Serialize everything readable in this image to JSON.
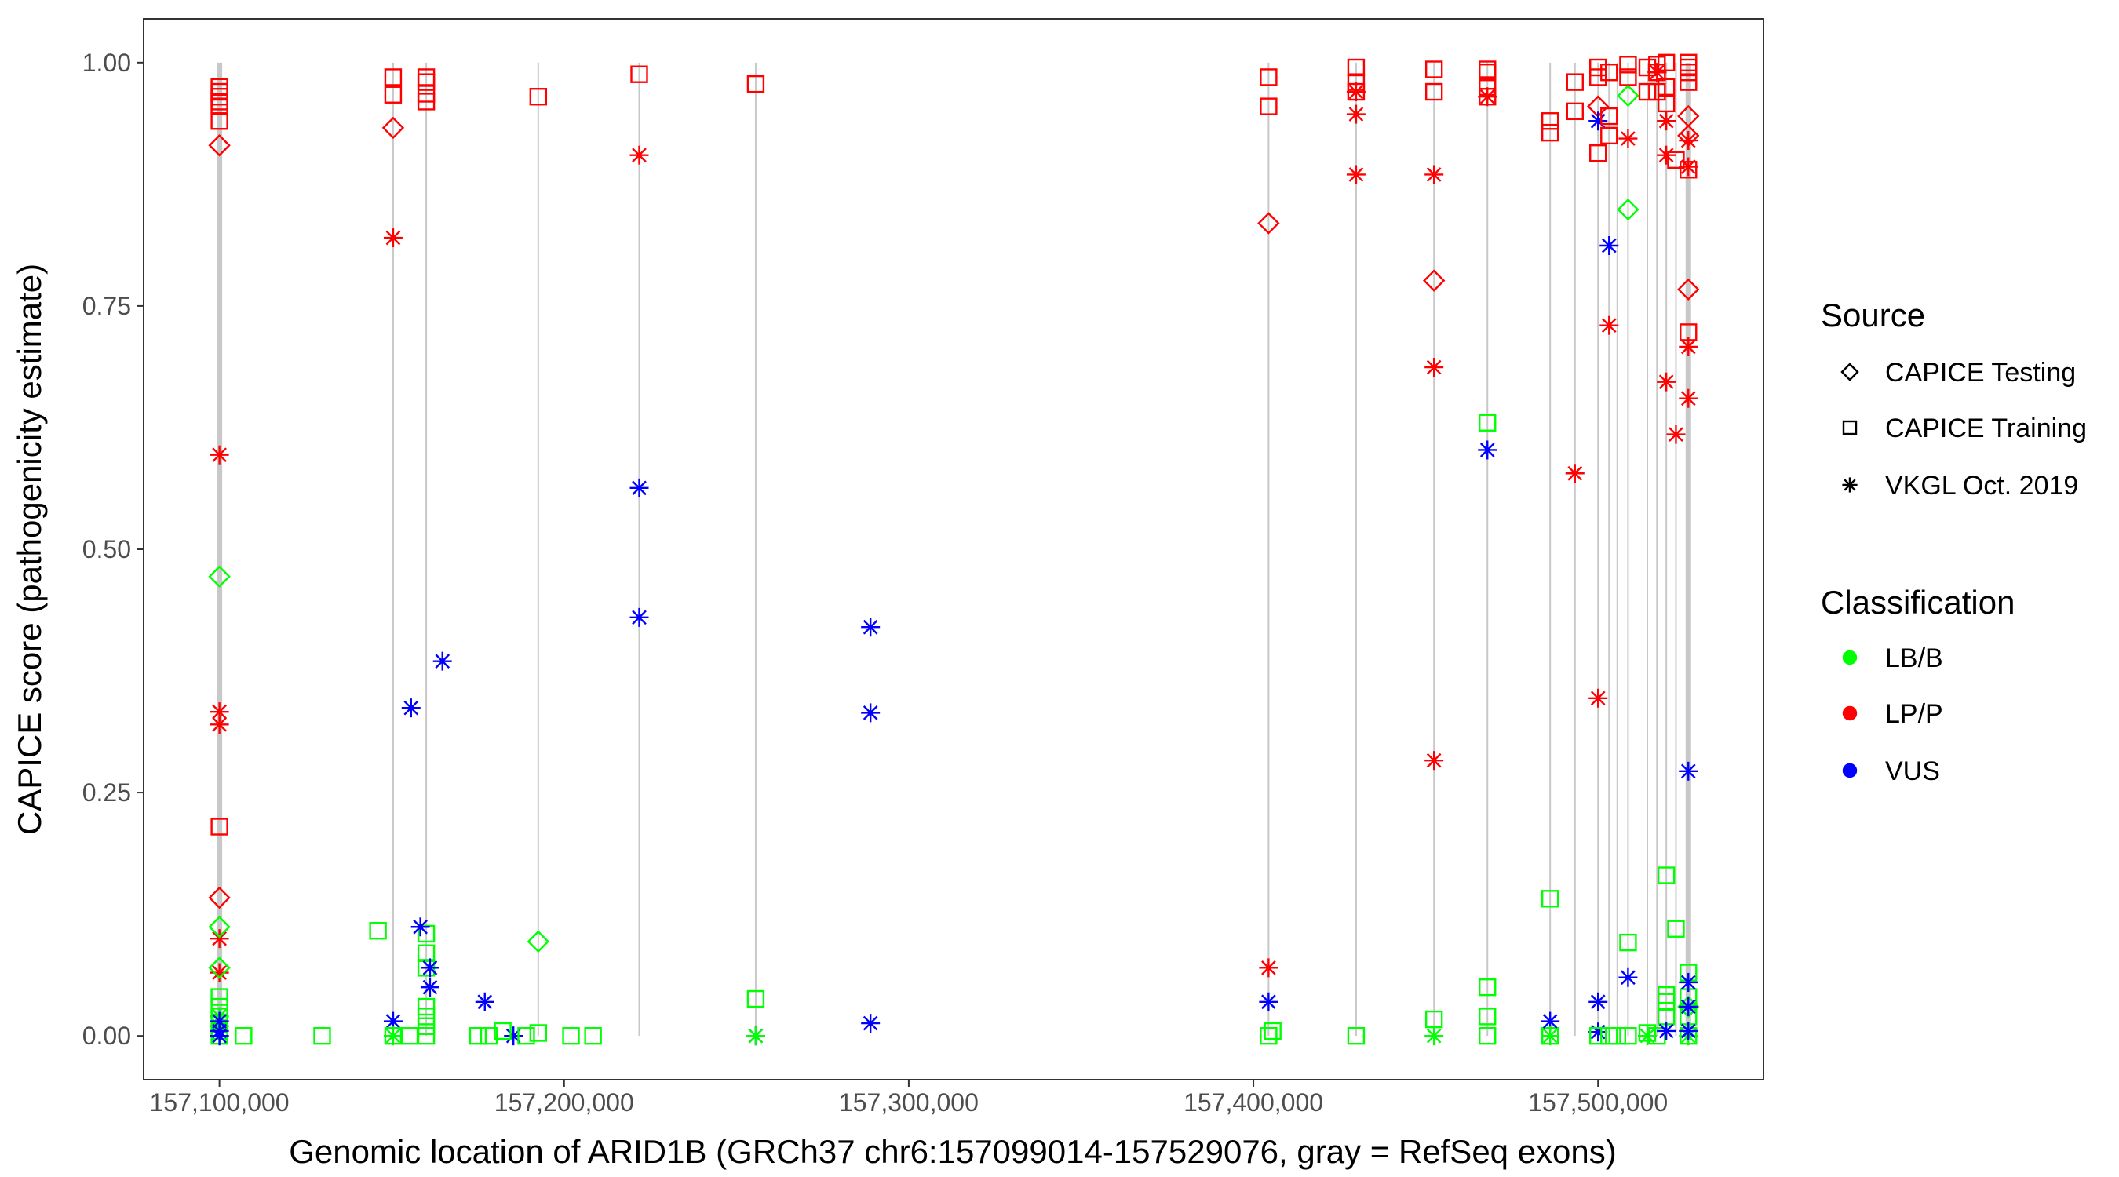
{
  "chart_data": {
    "type": "scatter",
    "xlabel": "Genomic location of ARID1B (GRCh37 chr6:157099014-157529076, gray = RefSeq exons)",
    "ylabel": "CAPICE score (pathogenicity estimate)",
    "xlim": [
      157078000,
      157548000
    ],
    "ylim": [
      -0.045,
      1.045
    ],
    "x_ticks": [
      157100000,
      157200000,
      157300000,
      157400000,
      157500000
    ],
    "x_tick_labels": [
      "157,100,000",
      "157,200,000",
      "157,300,000",
      "157,400,000",
      "157,500,000"
    ],
    "y_ticks": [
      0,
      0.25,
      0.5,
      0.75,
      1.0
    ],
    "y_tick_labels": [
      "0.00",
      "0.25",
      "0.50",
      "0.75",
      "1.00"
    ],
    "grid": false,
    "legend_placement": "right",
    "legends": [
      {
        "title": "Source",
        "items": [
          {
            "key": "T",
            "label": "CAPICE Testing",
            "shape": "diamond"
          },
          {
            "key": "R",
            "label": "CAPICE Training",
            "shape": "square"
          },
          {
            "key": "V",
            "label": "VKGL Oct. 2019",
            "shape": "asterisk"
          }
        ]
      },
      {
        "title": "Classification",
        "items": [
          {
            "key": "B",
            "label": "LB/B",
            "color": "#00ff00"
          },
          {
            "key": "P",
            "label": "LP/P",
            "color": "#ff0000"
          },
          {
            "key": "U",
            "label": "VUS",
            "color": "#0000ff"
          }
        ]
      }
    ],
    "exon_positions": [
      157100000,
      157150400,
      157160000,
      157192500,
      157221800,
      157255600,
      157404400,
      157429800,
      157452400,
      157467900,
      157486100,
      157493300,
      157500000,
      157503200,
      157505600,
      157508700,
      157514300,
      157517100,
      157519800,
      157522600,
      157526200
    ],
    "thick_exons": [
      157100000,
      157526200
    ],
    "point_fields": [
      "position",
      "score",
      "source",
      "classification"
    ],
    "points": [
      [
        157100000,
        0.975,
        "R",
        "P"
      ],
      [
        157100000,
        0.97,
        "R",
        "P"
      ],
      [
        157100000,
        0.965,
        "R",
        "P"
      ],
      [
        157100000,
        0.96,
        "R",
        "P"
      ],
      [
        157100000,
        0.955,
        "R",
        "P"
      ],
      [
        157100000,
        0.94,
        "R",
        "P"
      ],
      [
        157100000,
        0.215,
        "R",
        "P"
      ],
      [
        157100000,
        0.915,
        "T",
        "P"
      ],
      [
        157100000,
        0.142,
        "T",
        "P"
      ],
      [
        157100000,
        0.597,
        "V",
        "P"
      ],
      [
        157100000,
        0.333,
        "V",
        "P"
      ],
      [
        157100000,
        0.32,
        "V",
        "P"
      ],
      [
        157100000,
        0.1,
        "V",
        "P"
      ],
      [
        157100000,
        0.065,
        "V",
        "P"
      ],
      [
        157100000,
        0.472,
        "T",
        "B"
      ],
      [
        157100000,
        0.112,
        "T",
        "B"
      ],
      [
        157100000,
        0.07,
        "T",
        "B"
      ],
      [
        157100000,
        0.04,
        "R",
        "B"
      ],
      [
        157100000,
        0.03,
        "R",
        "B"
      ],
      [
        157100000,
        0.02,
        "R",
        "B"
      ],
      [
        157100000,
        0.005,
        "R",
        "B"
      ],
      [
        157100000,
        0,
        "R",
        "B"
      ],
      [
        157100000,
        0.02,
        "V",
        "B"
      ],
      [
        157100000,
        0.01,
        "V",
        "B"
      ],
      [
        157100000,
        0,
        "V",
        "B"
      ],
      [
        157100000,
        0.015,
        "V",
        "U"
      ],
      [
        157100000,
        0.005,
        "V",
        "U"
      ],
      [
        157100000,
        0,
        "V",
        "U"
      ],
      [
        157150400,
        0.985,
        "R",
        "P"
      ],
      [
        157150400,
        0.967,
        "R",
        "P"
      ],
      [
        157150400,
        0.933,
        "T",
        "P"
      ],
      [
        157150400,
        0.82,
        "V",
        "P"
      ],
      [
        157150400,
        0.015,
        "V",
        "U"
      ],
      [
        157150400,
        0,
        "R",
        "B"
      ],
      [
        157150400,
        0,
        "V",
        "B"
      ],
      [
        157160000,
        0.985,
        "R",
        "P"
      ],
      [
        157160000,
        0.98,
        "R",
        "P"
      ],
      [
        157160000,
        0.968,
        "R",
        "P"
      ],
      [
        157160000,
        0.96,
        "R",
        "P"
      ],
      [
        157160000,
        0.105,
        "R",
        "B"
      ],
      [
        157160000,
        0.085,
        "R",
        "B"
      ],
      [
        157160000,
        0.07,
        "R",
        "B"
      ],
      [
        157160000,
        0.03,
        "R",
        "B"
      ],
      [
        157160000,
        0.02,
        "R",
        "B"
      ],
      [
        157160000,
        0.01,
        "R",
        "B"
      ],
      [
        157160000,
        0,
        "R",
        "B"
      ],
      [
        157158300,
        0.112,
        "V",
        "U"
      ],
      [
        157161100,
        0.07,
        "V",
        "U"
      ],
      [
        157161100,
        0.05,
        "V",
        "U"
      ],
      [
        157155600,
        0.337,
        "V",
        "U"
      ],
      [
        157164700,
        0.385,
        "V",
        "U"
      ],
      [
        157177000,
        0.035,
        "V",
        "U"
      ],
      [
        157185300,
        0,
        "V",
        "U"
      ],
      [
        157146000,
        0.108,
        "R",
        "B"
      ],
      [
        157129800,
        0,
        "R",
        "B"
      ],
      [
        157155200,
        0,
        "R",
        "B"
      ],
      [
        157175000,
        0,
        "R",
        "B"
      ],
      [
        157178200,
        0,
        "R",
        "B"
      ],
      [
        157182200,
        0.005,
        "R",
        "B"
      ],
      [
        157189000,
        0,
        "R",
        "B"
      ],
      [
        157192500,
        0.003,
        "R",
        "B"
      ],
      [
        157202000,
        0,
        "R",
        "B"
      ],
      [
        157208400,
        0,
        "R",
        "B"
      ],
      [
        157107000,
        0,
        "R",
        "B"
      ],
      [
        157192500,
        0.097,
        "T",
        "B"
      ],
      [
        157192500,
        0.965,
        "R",
        "P"
      ],
      [
        157221800,
        0.988,
        "R",
        "P"
      ],
      [
        157221800,
        0.905,
        "V",
        "P"
      ],
      [
        157221800,
        0.563,
        "V",
        "U"
      ],
      [
        157221800,
        0.43,
        "V",
        "U"
      ],
      [
        157255600,
        0.978,
        "R",
        "P"
      ],
      [
        157255600,
        0.038,
        "R",
        "B"
      ],
      [
        157255600,
        0,
        "V",
        "U"
      ],
      [
        157255600,
        0,
        "V",
        "B"
      ],
      [
        157288900,
        0.42,
        "V",
        "U"
      ],
      [
        157288900,
        0.332,
        "V",
        "U"
      ],
      [
        157288900,
        0.013,
        "V",
        "U"
      ],
      [
        157404400,
        0.985,
        "R",
        "P"
      ],
      [
        157404400,
        0.955,
        "R",
        "P"
      ],
      [
        157404400,
        0.835,
        "T",
        "P"
      ],
      [
        157404400,
        0.07,
        "V",
        "P"
      ],
      [
        157404400,
        0.035,
        "V",
        "U"
      ],
      [
        157405600,
        0.005,
        "R",
        "B"
      ],
      [
        157404400,
        0,
        "R",
        "B"
      ],
      [
        157429800,
        0.995,
        "R",
        "P"
      ],
      [
        157429800,
        0.98,
        "R",
        "P"
      ],
      [
        157429800,
        0.97,
        "R",
        "P"
      ],
      [
        157429800,
        0.97,
        "V",
        "P"
      ],
      [
        157429800,
        0.947,
        "V",
        "P"
      ],
      [
        157429800,
        0.885,
        "V",
        "P"
      ],
      [
        157429800,
        0,
        "R",
        "B"
      ],
      [
        157452400,
        0.993,
        "R",
        "P"
      ],
      [
        157452400,
        0.97,
        "R",
        "P"
      ],
      [
        157452400,
        0.776,
        "T",
        "P"
      ],
      [
        157452400,
        0.885,
        "V",
        "P"
      ],
      [
        157452400,
        0.687,
        "V",
        "P"
      ],
      [
        157452400,
        0.283,
        "V",
        "P"
      ],
      [
        157452400,
        0.017,
        "R",
        "B"
      ],
      [
        157452400,
        0,
        "V",
        "B"
      ],
      [
        157467900,
        0.993,
        "R",
        "P"
      ],
      [
        157467900,
        0.99,
        "R",
        "P"
      ],
      [
        157467900,
        0.975,
        "R",
        "P"
      ],
      [
        157467900,
        0.965,
        "R",
        "P"
      ],
      [
        157467900,
        0.965,
        "V",
        "P"
      ],
      [
        157467900,
        0.63,
        "R",
        "B"
      ],
      [
        157467900,
        0.05,
        "R",
        "B"
      ],
      [
        157467900,
        0.02,
        "R",
        "B"
      ],
      [
        157467900,
        0,
        "R",
        "B"
      ],
      [
        157467900,
        0.602,
        "V",
        "U"
      ],
      [
        157486100,
        0.94,
        "R",
        "P"
      ],
      [
        157486100,
        0.928,
        "R",
        "P"
      ],
      [
        157486100,
        0.141,
        "R",
        "B"
      ],
      [
        157486100,
        0,
        "R",
        "B"
      ],
      [
        157486100,
        0.015,
        "V",
        "U"
      ],
      [
        157486100,
        0,
        "V",
        "B"
      ],
      [
        157493300,
        0.98,
        "R",
        "P"
      ],
      [
        157493300,
        0.95,
        "R",
        "P"
      ],
      [
        157493300,
        0.578,
        "V",
        "P"
      ],
      [
        157500000,
        0.995,
        "R",
        "P"
      ],
      [
        157500000,
        0.985,
        "R",
        "P"
      ],
      [
        157500000,
        0.907,
        "R",
        "P"
      ],
      [
        157500000,
        0.955,
        "T",
        "P"
      ],
      [
        157500000,
        0.347,
        "V",
        "P"
      ],
      [
        157500000,
        0.94,
        "V",
        "U"
      ],
      [
        157500000,
        0.035,
        "V",
        "U"
      ],
      [
        157500000,
        0.004,
        "V",
        "U"
      ],
      [
        157500000,
        0,
        "R",
        "B"
      ],
      [
        157503200,
        0.99,
        "R",
        "P"
      ],
      [
        157503200,
        0.945,
        "R",
        "P"
      ],
      [
        157503200,
        0.925,
        "R",
        "P"
      ],
      [
        157503200,
        0.73,
        "V",
        "P"
      ],
      [
        157503200,
        0.812,
        "V",
        "U"
      ],
      [
        157503200,
        0,
        "R",
        "B"
      ],
      [
        157505600,
        0,
        "R",
        "B"
      ],
      [
        157508700,
        0.998,
        "R",
        "P"
      ],
      [
        157508700,
        0.985,
        "R",
        "P"
      ],
      [
        157508700,
        0.966,
        "T",
        "B"
      ],
      [
        157508700,
        0.849,
        "T",
        "B"
      ],
      [
        157508700,
        0.922,
        "V",
        "P"
      ],
      [
        157508700,
        0.096,
        "R",
        "B"
      ],
      [
        157508700,
        0,
        "R",
        "B"
      ],
      [
        157508700,
        0.06,
        "V",
        "U"
      ],
      [
        157514300,
        0.995,
        "R",
        "P"
      ],
      [
        157514300,
        0.97,
        "R",
        "P"
      ],
      [
        157514300,
        0.003,
        "R",
        "B"
      ],
      [
        157514300,
        0,
        "V",
        "B"
      ],
      [
        157517100,
        0.998,
        "R",
        "P"
      ],
      [
        157517100,
        0.99,
        "R",
        "P"
      ],
      [
        157517100,
        0.97,
        "R",
        "P"
      ],
      [
        157517100,
        0.99,
        "V",
        "P"
      ],
      [
        157517100,
        0,
        "R",
        "B"
      ],
      [
        157519800,
        1.0,
        "R",
        "P"
      ],
      [
        157519800,
        0.975,
        "R",
        "P"
      ],
      [
        157519800,
        0.958,
        "R",
        "P"
      ],
      [
        157519800,
        0.94,
        "V",
        "P"
      ],
      [
        157519800,
        0.905,
        "V",
        "P"
      ],
      [
        157519800,
        0.672,
        "V",
        "P"
      ],
      [
        157519800,
        0.165,
        "R",
        "B"
      ],
      [
        157519800,
        0.042,
        "R",
        "B"
      ],
      [
        157519800,
        0.035,
        "R",
        "B"
      ],
      [
        157519800,
        0.02,
        "R",
        "B"
      ],
      [
        157519800,
        0.005,
        "V",
        "U"
      ],
      [
        157522600,
        0.9,
        "R",
        "P"
      ],
      [
        157522600,
        0.618,
        "V",
        "P"
      ],
      [
        157522600,
        0.11,
        "R",
        "B"
      ],
      [
        157526200,
        1.0,
        "R",
        "P"
      ],
      [
        157526200,
        0.995,
        "R",
        "P"
      ],
      [
        157526200,
        0.99,
        "R",
        "P"
      ],
      [
        157526200,
        0.98,
        "R",
        "P"
      ],
      [
        157526200,
        0.89,
        "R",
        "P"
      ],
      [
        157526200,
        0.723,
        "R",
        "P"
      ],
      [
        157526200,
        0.945,
        "T",
        "P"
      ],
      [
        157526200,
        0.925,
        "T",
        "P"
      ],
      [
        157526200,
        0.767,
        "T",
        "P"
      ],
      [
        157526200,
        0.92,
        "V",
        "P"
      ],
      [
        157526200,
        0.893,
        "V",
        "P"
      ],
      [
        157526200,
        0.708,
        "V",
        "P"
      ],
      [
        157526200,
        0.655,
        "V",
        "P"
      ],
      [
        157526200,
        0.065,
        "R",
        "B"
      ],
      [
        157526200,
        0.04,
        "R",
        "B"
      ],
      [
        157526200,
        0.02,
        "R",
        "B"
      ],
      [
        157526200,
        0,
        "R",
        "B"
      ],
      [
        157526200,
        0.03,
        "T",
        "B"
      ],
      [
        157526200,
        0,
        "V",
        "B"
      ],
      [
        157526200,
        0.272,
        "V",
        "U"
      ],
      [
        157526200,
        0.055,
        "V",
        "U"
      ],
      [
        157526200,
        0.03,
        "V",
        "U"
      ],
      [
        157526200,
        0.005,
        "V",
        "U"
      ]
    ]
  }
}
